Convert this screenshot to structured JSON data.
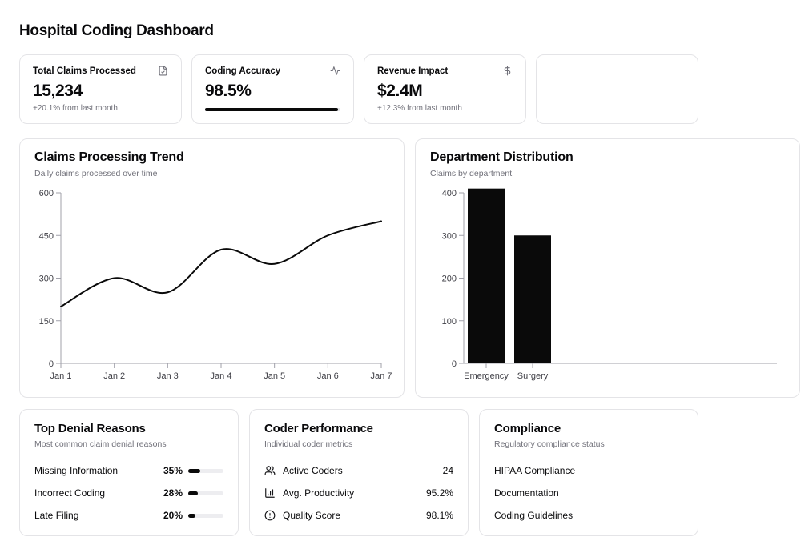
{
  "page": {
    "title": "Hospital Coding Dashboard"
  },
  "colors": {
    "accent": "#0a0a0a",
    "border": "#e4e4e7",
    "muted": "#71717a",
    "axis": "#a1a1aa",
    "tick_text": "#3f3f46"
  },
  "stats": [
    {
      "label": "Total Claims Processed",
      "icon": "file-check-icon",
      "value": "15,234",
      "sub": "+20.1% from last month"
    },
    {
      "label": "Coding Accuracy",
      "icon": "activity-icon",
      "value": "98.5%",
      "progress": 98.5
    },
    {
      "label": "Revenue Impact",
      "icon": "dollar-icon",
      "value": "$2.4M",
      "sub": "+12.3% from last month"
    }
  ],
  "chart_data": [
    {
      "type": "line",
      "title": "Claims Processing Trend",
      "subtitle": "Daily claims processed over time",
      "x": [
        "Jan 1",
        "Jan 2",
        "Jan 3",
        "Jan 4",
        "Jan 5",
        "Jan 6",
        "Jan 7"
      ],
      "series": [
        {
          "name": "claims",
          "values": [
            200,
            300,
            250,
            400,
            350,
            450,
            500
          ]
        }
      ],
      "ylim": [
        0,
        600
      ],
      "yticks": [
        0,
        150,
        300,
        450,
        600
      ],
      "grid": false,
      "legend": "none",
      "line_color": "#0a0a0a"
    },
    {
      "type": "bar",
      "title": "Department Distribution",
      "subtitle": "Claims by department",
      "categories": [
        "Emergency",
        "Surgery"
      ],
      "values": [
        410,
        300
      ],
      "ylim": [
        0,
        400
      ],
      "yticks": [
        0,
        100,
        200,
        300,
        400
      ],
      "grid": false,
      "legend": "none",
      "bar_color": "#0a0a0a"
    }
  ],
  "denials": {
    "title": "Top Denial Reasons",
    "subtitle": "Most common claim denial reasons",
    "rows": [
      {
        "label": "Missing Information",
        "pct_label": "35%",
        "pct": 35
      },
      {
        "label": "Incorrect Coding",
        "pct_label": "28%",
        "pct": 28
      },
      {
        "label": "Late Filing",
        "pct_label": "20%",
        "pct": 20
      }
    ]
  },
  "coder": {
    "title": "Coder Performance",
    "subtitle": "Individual coder metrics",
    "rows": [
      {
        "icon": "users-icon",
        "label": "Active Coders",
        "value": "24"
      },
      {
        "icon": "chart-column-icon",
        "label": "Avg. Productivity",
        "value": "95.2%"
      },
      {
        "icon": "alert-circle-icon",
        "label": "Quality Score",
        "value": "98.1%"
      }
    ]
  },
  "compliance": {
    "title": "Compliance",
    "subtitle": "Regulatory compliance status",
    "rows": [
      {
        "label": "HIPAA Compliance"
      },
      {
        "label": "Documentation"
      },
      {
        "label": "Coding Guidelines"
      }
    ]
  }
}
